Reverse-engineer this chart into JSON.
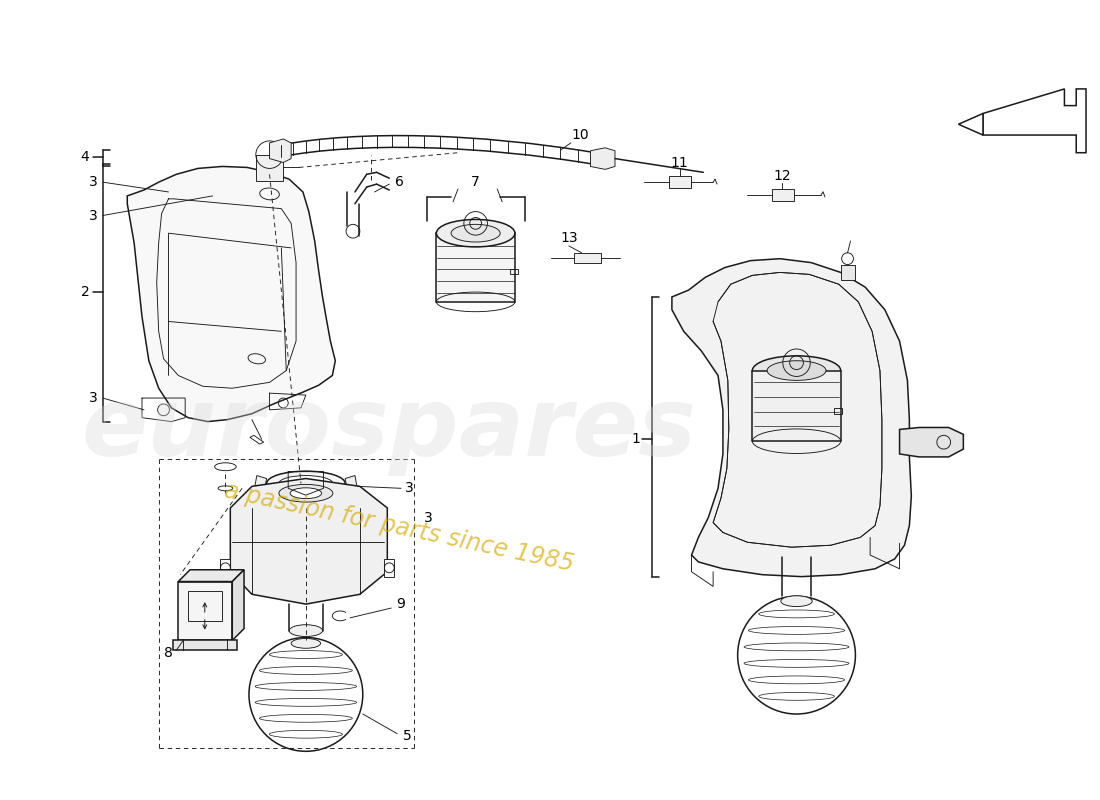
{
  "background_color": "#ffffff",
  "line_color": "#1a1a1a",
  "watermark_color": "#d4a800",
  "fig_width": 11.0,
  "fig_height": 8.0,
  "dpi": 100,
  "lw_main": 1.1,
  "lw_thin": 0.65,
  "lw_med": 0.85
}
